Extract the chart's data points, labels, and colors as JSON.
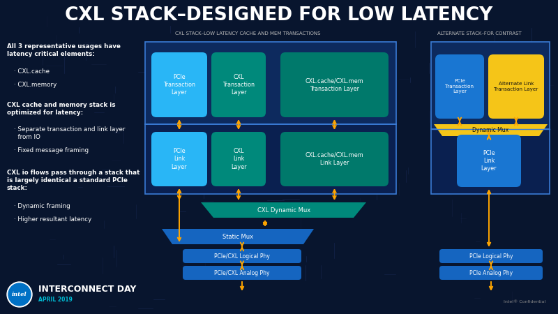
{
  "title": "CXL STACK–DESIGNED FOR LOW LATENCY",
  "bg_color": "#08152e",
  "title_color": "#ffffff",
  "section1_label": "CXL STACK–LOW LATENCY CACHE AND MEM TRANSACTIONS",
  "section2_label": "ALTERNATE STACK–FOR CONTRAST",
  "arrow_color": "#FFA500",
  "blue_outer": "#0d2d6e",
  "blue_box": "#1565c0",
  "blue_light": "#29b6f6",
  "cyan_block": "#00acc1",
  "teal_block": "#00897b",
  "teal_mux": "#00796b",
  "blue_mid": "#1565c0",
  "blue_phy": "#1976d2",
  "yellow": "#f5c518",
  "yellow_dark": "#e6b800",
  "white": "#ffffff",
  "gray_label": "#bbbbbb"
}
